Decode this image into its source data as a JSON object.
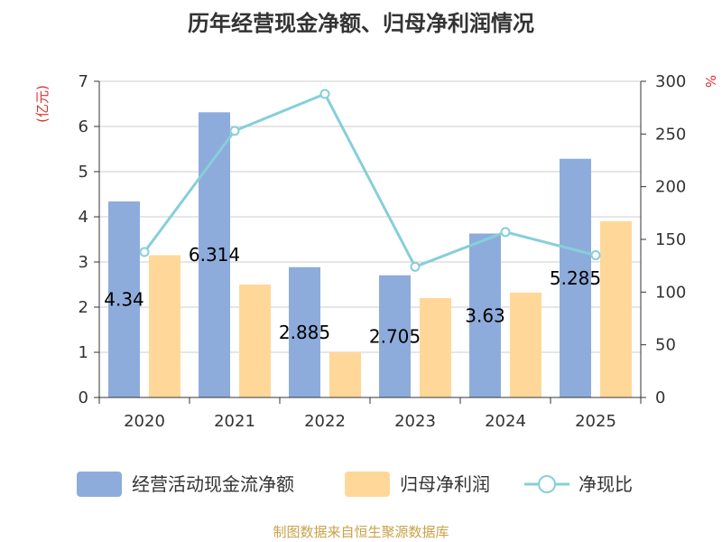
{
  "title": "历年经营现金净额、归母净利润情况",
  "source": "制图数据来自恒生聚源数据库",
  "colors": {
    "cashflow": "#8eacdb",
    "profit": "#ffd899",
    "ratio": "#86cfd9",
    "unit": "#e03030",
    "grid": "#cccccc",
    "axis": "#333333"
  },
  "chart_data": {
    "type": "bar",
    "categories": [
      "2020",
      "2021",
      "2022",
      "2023",
      "2024",
      "2025"
    ],
    "series": [
      {
        "name": "经营活动现金流净额",
        "type": "bar",
        "axis": "left",
        "values": [
          4.34,
          6.314,
          2.885,
          2.705,
          3.63,
          5.285
        ]
      },
      {
        "name": "归母净利润",
        "type": "bar",
        "axis": "left",
        "values": [
          3.15,
          2.5,
          1.0,
          2.2,
          2.32,
          3.9
        ]
      },
      {
        "name": "净现比",
        "type": "line",
        "axis": "right",
        "values": [
          138,
          253,
          288,
          124,
          157,
          135
        ]
      }
    ],
    "data_labels": [
      "4.34",
      "6.314",
      "2.885",
      "2.705",
      "3.63",
      "5.285"
    ],
    "y_left": {
      "unit": "(亿元)",
      "range": [
        0,
        7
      ],
      "ticks": [
        "0",
        "1",
        "2",
        "3",
        "4",
        "5",
        "6",
        "7"
      ]
    },
    "y_right": {
      "unit": "%",
      "range": [
        0,
        300
      ],
      "ticks": [
        "0",
        "50",
        "100",
        "150",
        "200",
        "250",
        "300"
      ]
    },
    "grid": true,
    "legend_position": "bottom"
  }
}
